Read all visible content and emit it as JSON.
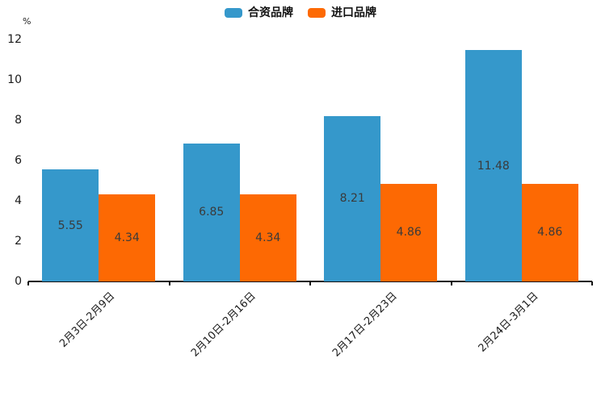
{
  "chart_data": {
    "type": "bar",
    "title": "",
    "xlabel": "",
    "ylabel": "%",
    "ylim": [
      0,
      12
    ],
    "yticks": [
      0,
      2,
      4,
      6,
      8,
      10,
      12
    ],
    "grid": false,
    "legend_position": "top-center",
    "categories": [
      "2月3日-2月9日",
      "2月10日-2月16日",
      "2月17日-2月23日",
      "2月24日-3月1日"
    ],
    "series": [
      {
        "name": "合资品牌",
        "color": "#3598cb",
        "values": [
          5.55,
          6.85,
          8.21,
          11.48
        ],
        "labels": [
          "5.55",
          "6.85",
          "8.21",
          "11.48"
        ]
      },
      {
        "name": "进口品牌",
        "color": "#fd6903",
        "values": [
          4.34,
          4.34,
          4.86,
          4.86
        ],
        "labels": [
          "4.34",
          "4.34",
          "4.86",
          "4.86"
        ]
      }
    ]
  },
  "legend": {
    "items": [
      {
        "label": "合资品牌",
        "color": "#3598cb"
      },
      {
        "label": "进口品牌",
        "color": "#fd6903"
      }
    ]
  },
  "axis": {
    "unit_label": "%",
    "line_color": "#111111"
  }
}
